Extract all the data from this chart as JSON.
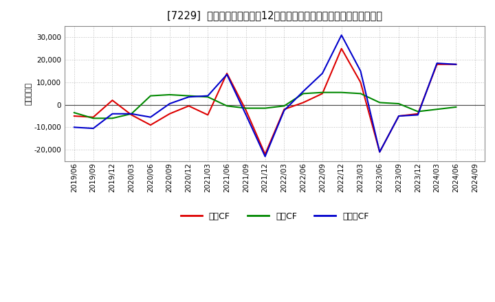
{
  "title": "[7229]  キャッシュフローの12か月移動合計の対前年同期増減額の推移",
  "ylabel": "（百万円）",
  "background_color": "#ffffff",
  "plot_bg_color": "#ffffff",
  "grid_color": "#bbbbbb",
  "ylim": [
    -25000,
    35000
  ],
  "yticks": [
    -20000,
    -10000,
    0,
    10000,
    20000,
    30000
  ],
  "x_labels": [
    "2019/06",
    "2019/09",
    "2019/12",
    "2020/03",
    "2020/06",
    "2020/09",
    "2020/12",
    "2021/03",
    "2021/06",
    "2021/09",
    "2021/12",
    "2022/03",
    "2022/06",
    "2022/09",
    "2022/12",
    "2023/03",
    "2023/06",
    "2023/09",
    "2023/12",
    "2024/03",
    "2024/06",
    "2024/09"
  ],
  "営業CF_values": [
    -5000,
    -5500,
    2000,
    -4500,
    -9000,
    -4000,
    -500,
    -4500,
    14000,
    -2500,
    -22000,
    -2000,
    1000,
    5000,
    25000,
    10000,
    -21000,
    -5000,
    -4000,
    18000,
    18000,
    null
  ],
  "投資CF_values": [
    -3500,
    -6000,
    -6000,
    -4000,
    4000,
    4500,
    4000,
    3500,
    -500,
    -1500,
    -1500,
    -500,
    5000,
    5500,
    5500,
    5000,
    1000,
    500,
    -3000,
    -2000,
    -1000,
    null
  ],
  "フリーCF_values": [
    -10000,
    -10500,
    -4000,
    -4000,
    -5500,
    500,
    3500,
    4000,
    13500,
    -4500,
    -23000,
    -2500,
    6000,
    14000,
    31000,
    15000,
    -21000,
    -5000,
    -4500,
    18500,
    18000,
    null
  ],
  "color_eigyo": "#dd0000",
  "color_toshi": "#008800",
  "color_free": "#0000cc",
  "legend_entries": [
    "営業CF",
    "投資CF",
    "フリーCF"
  ],
  "title_fontsize": 10.5,
  "ylabel_fontsize": 8,
  "tick_fontsize": 7.5,
  "legend_fontsize": 9
}
